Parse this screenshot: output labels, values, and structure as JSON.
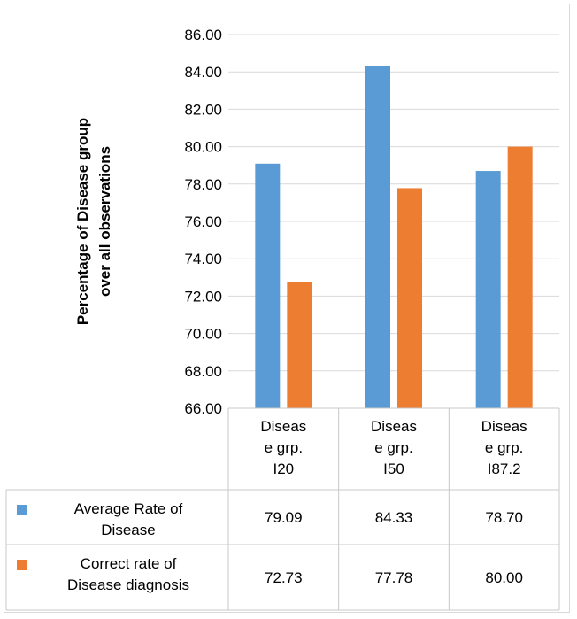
{
  "chart_data": {
    "type": "bar",
    "ylabel": "Percentage of Disease group over all observations",
    "ylabel_lines": [
      "Percentage of Disease group",
      "over all observations"
    ],
    "ylim": [
      66,
      86
    ],
    "ytick_step": 2,
    "ytick_labels": [
      "66.00",
      "68.00",
      "70.00",
      "72.00",
      "74.00",
      "76.00",
      "78.00",
      "80.00",
      "82.00",
      "84.00",
      "86.00"
    ],
    "grid": true,
    "data_table": true,
    "categories": [
      "Disease grp. I20",
      "Disease grp. I50",
      "Disease grp. I87.2"
    ],
    "category_lines": [
      [
        "Diseas",
        "e grp.",
        "I20"
      ],
      [
        "Diseas",
        "e grp.",
        "I50"
      ],
      [
        "Diseas",
        "e grp.",
        "I87.2"
      ]
    ],
    "series": [
      {
        "name": "Average Rate of Disease",
        "legend_lines": [
          "Average Rate of",
          "Disease"
        ],
        "color": "#5b9bd5",
        "values": [
          79.09,
          84.33,
          78.7
        ],
        "value_labels": [
          "79.09",
          "84.33",
          "78.70"
        ]
      },
      {
        "name": "Correct rate of Disease diagnosis",
        "legend_lines": [
          "Correct rate of",
          "Disease diagnosis"
        ],
        "color": "#ed7d31",
        "values": [
          72.73,
          77.78,
          80.0
        ],
        "value_labels": [
          "72.73",
          "77.78",
          "80.00"
        ]
      }
    ]
  }
}
